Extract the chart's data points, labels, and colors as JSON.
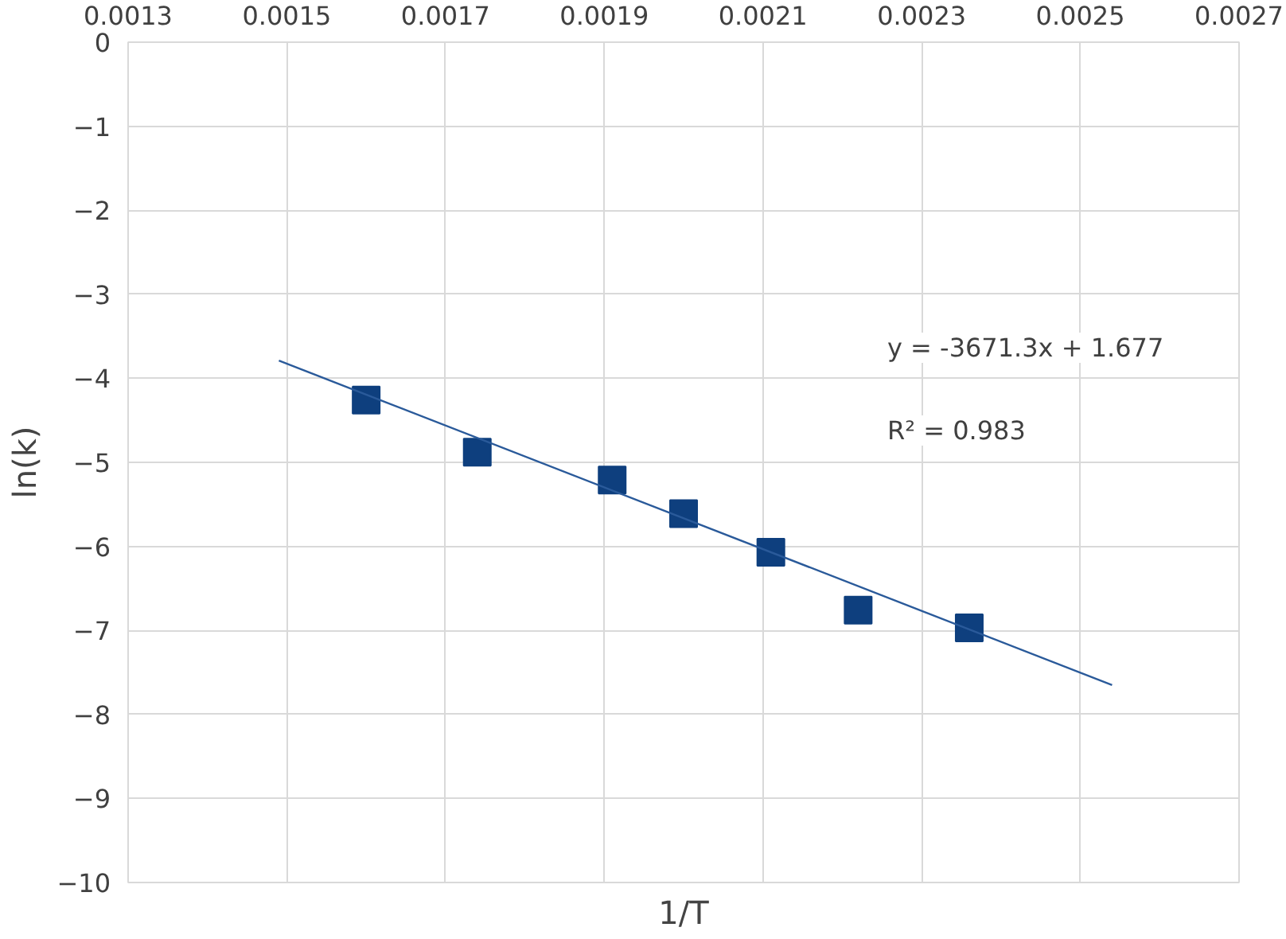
{
  "chart_data": {
    "type": "scatter",
    "xlabel": "1/T",
    "ylabel": "ln(k)",
    "x": [
      0.0016,
      0.00174,
      0.00191,
      0.002,
      0.00211,
      0.00222,
      0.00236
    ],
    "series": [
      {
        "color": "#0e3f7e",
        "values": [
          -4.26,
          -4.88,
          -5.21,
          -5.61,
          -6.07,
          -6.76,
          -6.97
        ]
      },
      {
        "type": "line",
        "color": "#2a5a9a",
        "x": [
          0.00149,
          0.00254
        ],
        "values": [
          -3.79,
          -7.65
        ],
        "marker": "none"
      }
    ],
    "marker": "square",
    "xlim": [
      0.0013,
      0.0027
    ],
    "xticks": [
      0.0013,
      0.0015,
      0.0017,
      0.0019,
      0.0021,
      0.0023,
      0.0025,
      0.0027
    ],
    "ylim": [
      -10,
      0
    ],
    "yticks": [
      0,
      -1,
      -2,
      -3,
      -4,
      -5,
      -6,
      -7,
      -8,
      -9,
      -10
    ],
    "grid": true,
    "annotations": [
      "y = -3671.3x + 1.677",
      "R² = 0.983"
    ]
  }
}
